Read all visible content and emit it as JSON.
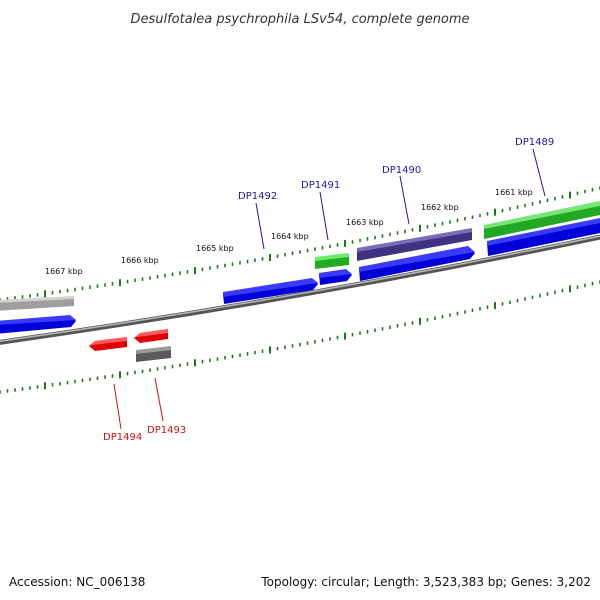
{
  "title": "Desulfotalea psychrophila LSv54, complete genome",
  "footer": {
    "accession": "Accession: NC_006138",
    "topology": "Topology: circular; Length: 3,523,383 bp; Genes: 3,202"
  },
  "colors": {
    "backbone": "#777777",
    "tick": "#1a7a1a",
    "forward_label": "#1a1aa0",
    "reverse_label": "#cc1111",
    "blue": "#0a0ae0",
    "green": "#33cc33",
    "purple": "#4a3a8a",
    "gray": "#aaaaaa",
    "red": "#ee1111",
    "dark_gray": "#666666"
  },
  "scale_labels": [
    "1667 kbp",
    "1666 kbp",
    "1665 kbp",
    "1664 kbp",
    "1663 kbp",
    "1662 kbp",
    "1661 kbp"
  ],
  "gene_labels": {
    "forward": [
      "DP1492",
      "DP1491",
      "DP1490",
      "DP1489"
    ],
    "reverse": [
      "DP1494",
      "DP1493"
    ]
  }
}
